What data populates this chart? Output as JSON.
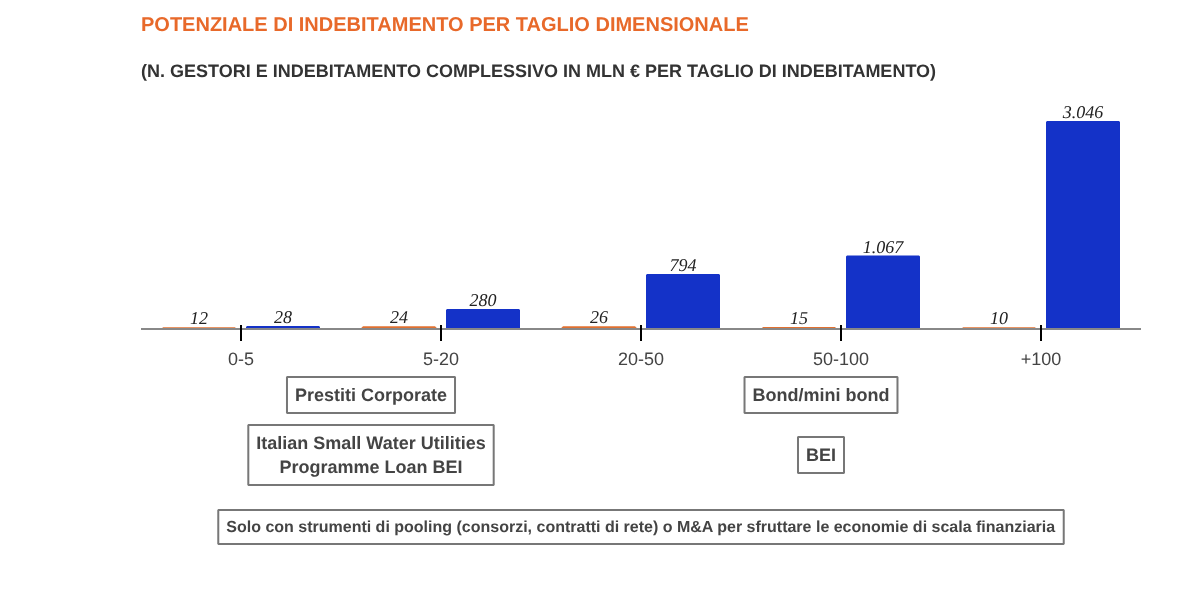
{
  "chart_data": {
    "type": "bar",
    "title": "POTENZIALE DI INDEBITAMENTO PER TAGLIO DIMENSIONALE",
    "subtitle": "(N. GESTORI E INDEBITAMENTO COMPLESSIVO IN MLN € PER TAGLIO DI INDEBITAMENTO)",
    "categories": [
      "0-5",
      "5-20",
      "20-50",
      "50-100",
      "+100"
    ],
    "series": [
      {
        "color": "#e07030",
        "values": [
          12,
          24,
          26,
          15,
          10
        ],
        "value_labels": [
          "12",
          "24",
          "26",
          "15",
          "10"
        ]
      },
      {
        "color": "#1432c8",
        "values": [
          28,
          280,
          794,
          1067,
          3046
        ],
        "value_labels": [
          "28",
          "280",
          "794",
          "1.067",
          "3.046"
        ]
      }
    ],
    "annotations": [
      "Prestiti Corporate",
      "Bond/mini bond",
      "Italian Small Water Utilities Programme Loan BEI",
      "BEI",
      "Solo con strumenti di pooling (consorzi, contratti di rete) o M&A per sfruttare le economie di scala finanziaria"
    ],
    "grid": false
  }
}
